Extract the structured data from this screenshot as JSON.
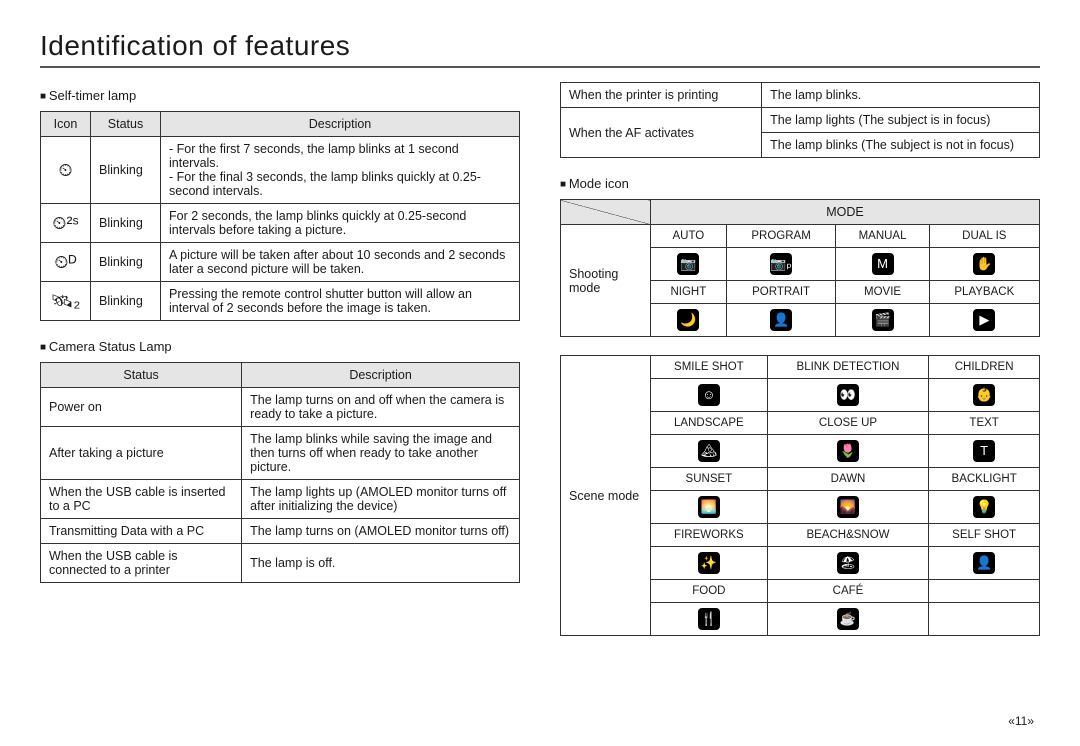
{
  "page": {
    "title": "Identification of features",
    "footer": "«11»"
  },
  "left": {
    "selftimer": {
      "label": "Self-timer lamp",
      "headers": [
        "Icon",
        "Status",
        "Description"
      ],
      "rows": [
        {
          "icon": "⏲",
          "status": "Blinking",
          "desc": "- For the first 7 seconds, the lamp blinks at 1 second intervals.\n- For the final 3 seconds, the lamp blinks quickly at 0.25-second intervals."
        },
        {
          "icon": "⏲²ˢ",
          "status": "Blinking",
          "desc": "For 2 seconds, the lamp blinks quickly at 0.25-second intervals before taking a picture."
        },
        {
          "icon": "⏲ᴰ",
          "status": "Blinking",
          "desc": "A picture will be taken after about 10 seconds and 2 seconds later a second picture will be taken."
        },
        {
          "icon": "🛰₂",
          "status": "Blinking",
          "desc": "Pressing the remote control shutter button will allow an interval of 2 seconds before the image is taken."
        }
      ]
    },
    "cameralamp": {
      "label": "Camera Status Lamp",
      "headers": [
        "Status",
        "Description"
      ],
      "rows": [
        {
          "status": "Power on",
          "desc": "The lamp turns on and off when the camera is ready to take a picture."
        },
        {
          "status": "After taking a picture",
          "desc": "The lamp blinks while saving the image and then turns off when ready to take another picture."
        },
        {
          "status": "When the USB cable is inserted to a PC",
          "desc": "The lamp lights up (AMOLED monitor turns off after initializing the device)"
        },
        {
          "status": "Transmitting Data with a PC",
          "desc": "The lamp turns on (AMOLED monitor turns off)"
        },
        {
          "status": "When the USB cable is connected to a printer",
          "desc": "The lamp is off."
        }
      ]
    }
  },
  "right": {
    "extraLampRows": [
      {
        "status": "When the printer is printing",
        "desc": "The lamp blinks."
      },
      {
        "status": "When the AF activates",
        "descs": [
          "The lamp lights (The subject is in focus)",
          "The lamp blinks (The subject is not in focus)"
        ]
      }
    ],
    "modeicon": {
      "label": "Mode icon",
      "modeHeader": "MODE",
      "shooting": {
        "row_label": "Shooting mode",
        "row1_labels": [
          "AUTO",
          "PROGRAM",
          "MANUAL",
          "DUAL IS"
        ],
        "row1_icons": [
          "📷",
          "📷ₚ",
          "M",
          "✋"
        ],
        "row2_labels": [
          "NIGHT",
          "PORTRAIT",
          "MOVIE",
          "PLAYBACK"
        ],
        "row2_icons": [
          "🌙",
          "👤",
          "🎬",
          "▶"
        ]
      },
      "scene": {
        "row_label": "Scene mode",
        "rows": [
          {
            "labels": [
              "SMILE SHOT",
              "BLINK DETECTION",
              "CHILDREN"
            ],
            "icons": [
              "☺",
              "👀",
              "👶"
            ]
          },
          {
            "labels": [
              "LANDSCAPE",
              "CLOSE UP",
              "TEXT"
            ],
            "icons": [
              "🏔",
              "🌷",
              "T"
            ]
          },
          {
            "labels": [
              "SUNSET",
              "DAWN",
              "BACKLIGHT"
            ],
            "icons": [
              "🌅",
              "🌄",
              "💡"
            ]
          },
          {
            "labels": [
              "FIREWORKS",
              "BEACH&SNOW",
              "SELF SHOT"
            ],
            "icons": [
              "✨",
              "🏖",
              "👤"
            ]
          },
          {
            "labels": [
              "FOOD",
              "CAFÉ",
              ""
            ],
            "icons": [
              "🍴",
              "☕",
              ""
            ]
          }
        ]
      }
    }
  }
}
